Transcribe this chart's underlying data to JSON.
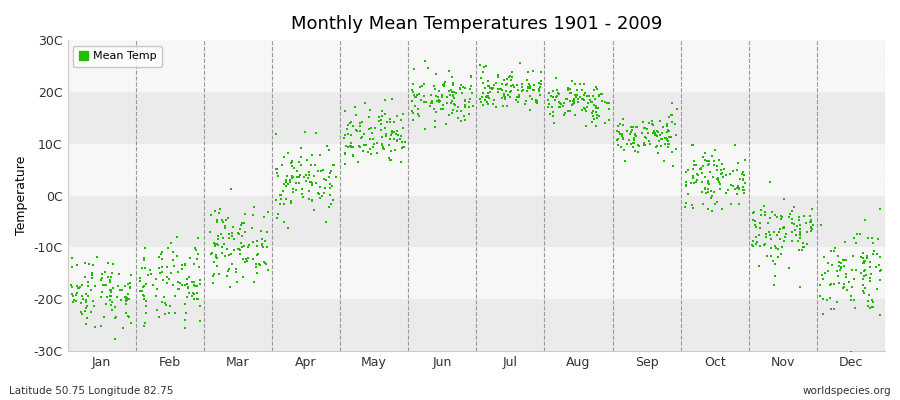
{
  "title": "Monthly Mean Temperatures 1901 - 2009",
  "ylabel": "Temperature",
  "xlabel_bottom_left": "Latitude 50.75 Longitude 82.75",
  "xlabel_bottom_right": "worldspecies.org",
  "legend_label": "Mean Temp",
  "ylim": [
    -30,
    30
  ],
  "yticks": [
    -30,
    -20,
    -10,
    0,
    10,
    20,
    30
  ],
  "ytick_labels": [
    "-30C",
    "-20C",
    "-10C",
    "0C",
    "10C",
    "20C",
    "30C"
  ],
  "months": [
    "Jan",
    "Feb",
    "Mar",
    "Apr",
    "May",
    "Jun",
    "Jul",
    "Aug",
    "Sep",
    "Oct",
    "Nov",
    "Dec"
  ],
  "dot_color": "#22bb00",
  "background_color": "#ffffff",
  "plot_bg_color": "#ffffff",
  "band_color_light": "#ebebeb",
  "band_color_white": "#f7f7f7",
  "n_years": 109,
  "seed": 42,
  "mean_temps": [
    -18.5,
    -17.5,
    -9.5,
    3.0,
    11.0,
    18.5,
    20.5,
    18.0,
    11.5,
    3.0,
    -7.0,
    -14.5
  ],
  "std_temps": [
    3.5,
    4.0,
    3.5,
    3.5,
    3.0,
    2.5,
    2.0,
    2.0,
    2.0,
    2.5,
    3.5,
    4.5
  ]
}
